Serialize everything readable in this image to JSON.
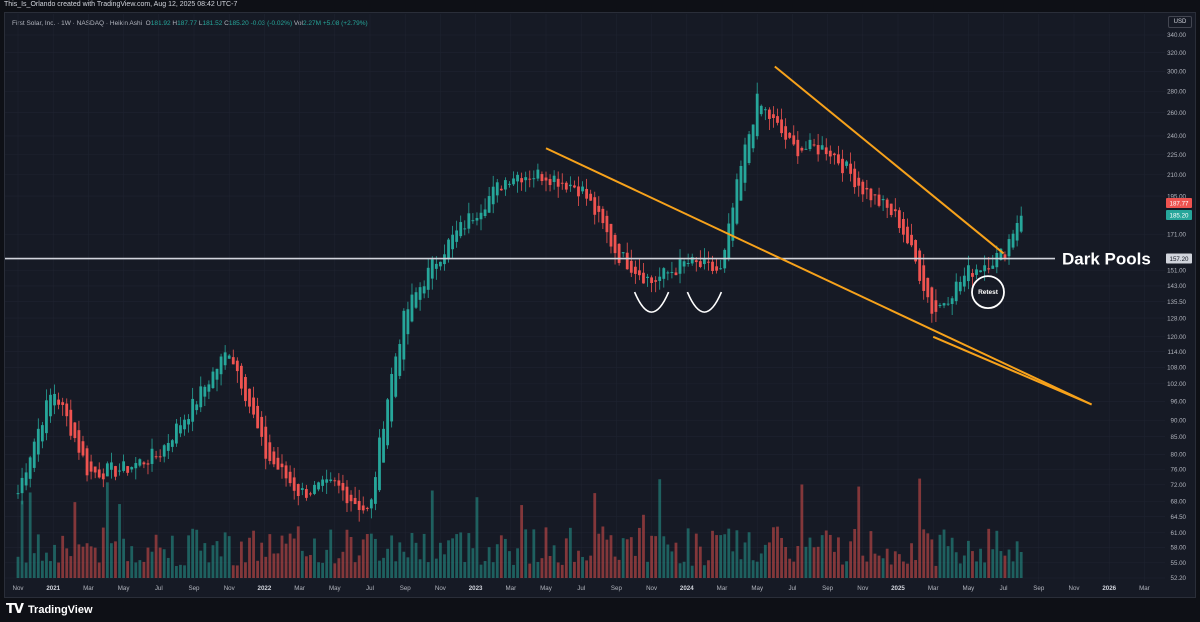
{
  "header": {
    "attribution": "This_Is_Orlando created with TradingView.com, Aug 12, 2025 08:42 UTC-7"
  },
  "legend": {
    "symbol": "First Solar, Inc. · 1W · NASDAQ · Heikin Ashi",
    "open_label": "O",
    "open": "181.92",
    "high_label": "H",
    "high": "187.77",
    "low_label": "L",
    "low": "181.52",
    "close_label": "C",
    "close": "185.20",
    "change": "-0.03 (-0.02%)",
    "vol_label": "Vol",
    "volume": "2.27M",
    "vol_change": "+5.08 (+2.79%)"
  },
  "currency": "USD",
  "footer": {
    "brand": "TradingView",
    "brand_icon": "tv-logo-icon"
  },
  "colors": {
    "up": "#26a69a",
    "down": "#ef5350",
    "trendline": "#f7a21b",
    "level": "#d1d4dc",
    "background": "#161a25",
    "current_price_badge": "#ef5350",
    "close_badge": "#26a69a"
  },
  "chart_data": {
    "type": "candlestick",
    "style": "Heikin Ashi",
    "interval": "1W",
    "symbol": "First Solar, Inc.",
    "exchange": "NASDAQ",
    "y_axis_ticks": [
      340,
      320,
      300,
      280,
      260,
      240,
      225,
      210,
      195,
      185.2,
      171,
      157.2,
      151,
      143,
      135.5,
      128,
      120,
      114,
      108,
      102,
      96,
      90,
      85,
      80,
      76,
      72,
      68,
      64.5,
      61,
      58,
      55,
      52.2
    ],
    "y_scale": "log",
    "x_axis_ticks": [
      "Nov",
      "2021",
      "Mar",
      "May",
      "Jul",
      "Sep",
      "Nov",
      "2022",
      "Mar",
      "May",
      "Jul",
      "Sep",
      "Nov",
      "2023",
      "Mar",
      "May",
      "Jul",
      "Sep",
      "Nov",
      "2024",
      "Mar",
      "May",
      "Jul",
      "Sep",
      "Nov",
      "2025",
      "Mar",
      "May",
      "Jul",
      "Sep",
      "Nov",
      "2026",
      "Mar"
    ],
    "current_price_badges": [
      {
        "value": "187.77",
        "kind": "high"
      },
      {
        "value": "185.20",
        "kind": "close"
      }
    ],
    "price_level": {
      "value": 157.2,
      "label": "157.20"
    },
    "annotations": [
      {
        "type": "text",
        "text": "Dark Pools"
      },
      {
        "type": "text",
        "text": "Retest"
      },
      {
        "type": "trendline",
        "from": [
          "2023-05",
          230
        ],
        "to": [
          "2025-12",
          95
        ]
      },
      {
        "type": "trendline",
        "from": [
          "2024-06",
          305
        ],
        "to": [
          "2025-07",
          160
        ]
      },
      {
        "type": "trendline",
        "from": [
          "2025-03",
          120
        ],
        "to": [
          "2025-12",
          95
        ]
      },
      {
        "type": "horizontal_line",
        "value": 157.2
      }
    ],
    "weekly_close_path_approx": [
      {
        "x": "2020-11",
        "y": 70
      },
      {
        "x": "2021-01",
        "y": 100
      },
      {
        "x": "2021-03",
        "y": 75
      },
      {
        "x": "2021-05",
        "y": 76
      },
      {
        "x": "2021-07",
        "y": 80
      },
      {
        "x": "2021-09",
        "y": 95
      },
      {
        "x": "2021-11",
        "y": 115
      },
      {
        "x": "2022-01",
        "y": 80
      },
      {
        "x": "2022-03",
        "y": 70
      },
      {
        "x": "2022-05",
        "y": 72
      },
      {
        "x": "2022-07",
        "y": 65
      },
      {
        "x": "2022-09",
        "y": 130
      },
      {
        "x": "2022-11",
        "y": 160
      },
      {
        "x": "2023-01",
        "y": 185
      },
      {
        "x": "2023-03",
        "y": 210
      },
      {
        "x": "2023-05",
        "y": 210
      },
      {
        "x": "2023-07",
        "y": 200
      },
      {
        "x": "2023-09",
        "y": 160
      },
      {
        "x": "2023-11",
        "y": 145
      },
      {
        "x": "2024-01",
        "y": 155
      },
      {
        "x": "2024-03",
        "y": 150
      },
      {
        "x": "2024-05",
        "y": 270
      },
      {
        "x": "2024-07",
        "y": 230
      },
      {
        "x": "2024-09",
        "y": 230
      },
      {
        "x": "2024-11",
        "y": 200
      },
      {
        "x": "2025-01",
        "y": 180
      },
      {
        "x": "2025-03",
        "y": 130
      },
      {
        "x": "2025-05",
        "y": 150
      },
      {
        "x": "2025-07",
        "y": 160
      },
      {
        "x": "2025-08",
        "y": 185.2
      }
    ]
  }
}
